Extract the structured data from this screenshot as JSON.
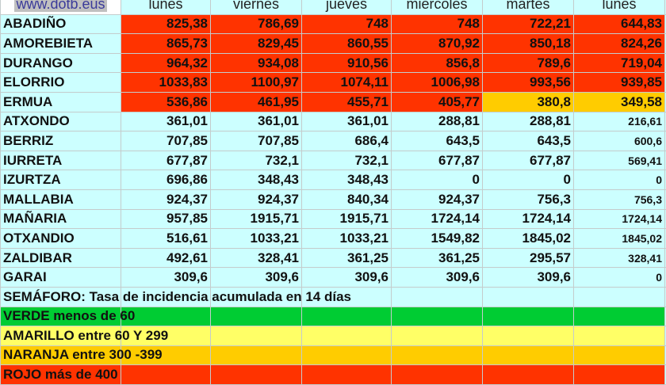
{
  "site": "www.dotb.eus",
  "columns": [
    "lunes",
    "viernes",
    "jueves",
    "miercoles",
    "martes",
    "lunes"
  ],
  "colors": {
    "rojo": "#ff3300",
    "naranja": "#ffcc00",
    "amarillo": "#ffff66",
    "verde": "#00cc33",
    "background": "#ccffff"
  },
  "rows": [
    {
      "name": "ABADIÑO",
      "values": [
        "825,38",
        "786,69",
        "748",
        "748",
        "722,21",
        "644,83"
      ],
      "levels": [
        "rojo",
        "rojo",
        "rojo",
        "rojo",
        "rojo",
        "rojo"
      ]
    },
    {
      "name": "AMOREBIETA",
      "values": [
        "865,73",
        "829,45",
        "860,55",
        "870,92",
        "850,18",
        "824,26"
      ],
      "levels": [
        "rojo",
        "rojo",
        "rojo",
        "rojo",
        "rojo",
        "rojo"
      ]
    },
    {
      "name": "DURANGO",
      "values": [
        "964,32",
        "934,08",
        "910,56",
        "856,8",
        "789,6",
        "719,04"
      ],
      "levels": [
        "rojo",
        "rojo",
        "rojo",
        "rojo",
        "rojo",
        "rojo"
      ]
    },
    {
      "name": "ELORRIO",
      "values": [
        "1033,83",
        "1100,97",
        "1074,11",
        "1006,98",
        "993,56",
        "939,85"
      ],
      "levels": [
        "rojo",
        "rojo",
        "rojo",
        "rojo",
        "rojo",
        "rojo"
      ]
    },
    {
      "name": "ERMUA",
      "values": [
        "536,86",
        "461,95",
        "455,71",
        "405,77",
        "380,8",
        "349,58"
      ],
      "levels": [
        "rojo",
        "rojo",
        "rojo",
        "rojo",
        "naranja",
        "naranja"
      ]
    },
    {
      "name": "ATXONDO",
      "values": [
        "361,01",
        "361,01",
        "361,01",
        "288,81",
        "288,81",
        "216,61"
      ]
    },
    {
      "name": "BERRIZ",
      "values": [
        "707,85",
        "707,85",
        "686,4",
        "643,5",
        "643,5",
        "600,6"
      ]
    },
    {
      "name": "IURRETA",
      "values": [
        "677,87",
        "732,1",
        "732,1",
        "677,87",
        "677,87",
        "569,41"
      ]
    },
    {
      "name": "IZURTZA",
      "values": [
        "696,86",
        "348,43",
        "348,43",
        "0",
        "0",
        "0"
      ]
    },
    {
      "name": "MALLABIA",
      "values": [
        "924,37",
        "924,37",
        "840,34",
        "924,37",
        "756,3",
        "756,3"
      ]
    },
    {
      "name": "MAÑARIA",
      "values": [
        "957,85",
        "1915,71",
        "1915,71",
        "1724,14",
        "1724,14",
        "1724,14"
      ]
    },
    {
      "name": "OTXANDIO",
      "values": [
        "516,61",
        "1033,21",
        "1033,21",
        "1549,82",
        "1845,02",
        "1845,02"
      ]
    },
    {
      "name": "ZALDIBAR",
      "values": [
        "492,61",
        "328,41",
        "361,25",
        "361,25",
        "295,57",
        "328,41"
      ]
    },
    {
      "name": "GARAI",
      "values": [
        "309,6",
        "309,6",
        "309,6",
        "309,6",
        "309,6",
        "0"
      ]
    }
  ],
  "semaforo": "SEMÁFORO:  Tasa de incidencia acumulada en 14 días",
  "legend": [
    {
      "label": "VERDE menos de 60",
      "level": "verde"
    },
    {
      "label": "AMARILLO entre 60 Y 299",
      "level": "amarillo"
    },
    {
      "label": "NARANJA entre 300 -399",
      "level": "naranja"
    },
    {
      "label": "ROJO más de 400",
      "level": "rojo"
    }
  ]
}
